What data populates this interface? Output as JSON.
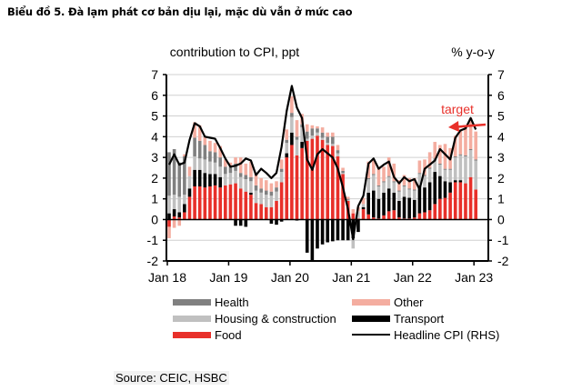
{
  "title": "Biểu đồ 5. Đà lạm phát cơ bản dịu lại, mặc dù vẫn ở mức cao",
  "source": "Source: CEIC, HSBC",
  "chart_data": {
    "type": "bar",
    "stacked": true,
    "title": "Biểu đồ 5. Đà lạm phát cơ bản dịu lại, mặc dù vẫn ở mức cao",
    "ylabel_left": "contribution  to CPI, ppt",
    "ylabel_right": "% y-o-y",
    "ylim": [
      -2,
      7
    ],
    "y2lim": [
      -2,
      7
    ],
    "yticks": [
      7,
      6,
      5,
      4,
      3,
      2,
      1,
      0,
      -1,
      -2
    ],
    "grid": true,
    "xtick_labels": [
      "Jan 18",
      "Jan 19",
      "Jan 20",
      "Jan 21",
      "Jan 22",
      "Jan 23"
    ],
    "xtick_indices": [
      0,
      12,
      24,
      36,
      48,
      60
    ],
    "annotation": {
      "text": "target",
      "value": 4.5,
      "color": "#e8302a"
    },
    "legend": [
      {
        "name": "Health",
        "color": "#808080",
        "kind": "bar"
      },
      {
        "name": "Other",
        "color": "#f4ada0",
        "kind": "bar"
      },
      {
        "name": "Housing & construction",
        "color": "#c0c0c0",
        "kind": "bar"
      },
      {
        "name": "Transport",
        "color": "#000000",
        "kind": "bar"
      },
      {
        "name": "Food",
        "color": "#e8302a",
        "kind": "bar"
      },
      {
        "name": "Headline CPI (RHS)",
        "color": "#000000",
        "kind": "line"
      }
    ],
    "legend_position": "bottom",
    "series": [
      {
        "name": "Food",
        "color": "#e8302a",
        "values": [
          -0.35,
          0.15,
          0.1,
          0.35,
          1.1,
          1.6,
          1.6,
          1.55,
          1.6,
          1.65,
          1.55,
          1.65,
          1.7,
          1.75,
          1.5,
          1.35,
          1.2,
          0.8,
          0.75,
          0.6,
          0.6,
          0.9,
          1.8,
          3.0,
          3.6,
          3.1,
          3.45,
          3.8,
          3.9,
          4.05,
          3.85,
          3.6,
          3.55,
          3.05,
          2.2,
          0.9,
          0.3,
          0.05,
          0.5,
          0.25,
          0.1,
          0.05,
          0.2,
          0.4,
          0.45,
          0.1,
          0.05,
          0.05,
          0.1,
          0.3,
          0.35,
          0.45,
          0.75,
          1.0,
          1.05,
          1.3,
          1.8,
          1.8,
          1.75,
          2.05,
          1.45
        ]
      },
      {
        "name": "Transport",
        "color": "#000000",
        "values": [
          0.3,
          0.35,
          0.25,
          0.4,
          0.4,
          0.8,
          0.8,
          0.7,
          0.6,
          0.55,
          0.5,
          0.0,
          0.0,
          -0.3,
          -0.3,
          -0.35,
          0.1,
          0.0,
          0.0,
          0.0,
          -0.2,
          -0.25,
          -0.1,
          0.2,
          0.6,
          -0.05,
          0.3,
          -1.6,
          -2.0,
          -1.4,
          -1.2,
          -1.1,
          -1.05,
          -1.0,
          -1.0,
          -1.0,
          -0.9,
          -0.6,
          0.1,
          1.05,
          1.3,
          0.95,
          1.1,
          1.1,
          0.85,
          0.8,
          1.05,
          1.0,
          0.85,
          1.35,
          1.2,
          1.35,
          1.55,
          1.1,
          0.8,
          0.5,
          0.1,
          0.1,
          0.0,
          0.0,
          0.0
        ]
      },
      {
        "name": "Housing & construction",
        "color": "#c0c0c0",
        "values": [
          0.85,
          0.7,
          0.75,
          0.45,
          0.6,
          0.65,
          0.55,
          0.65,
          0.6,
          0.55,
          0.5,
          0.55,
          0.55,
          0.6,
          0.55,
          0.6,
          0.55,
          0.6,
          0.55,
          0.6,
          0.55,
          0.45,
          0.5,
          0.5,
          0.75,
          0.75,
          0.7,
          0.1,
          0.15,
          0.15,
          0.1,
          0.1,
          0.1,
          0.15,
          0.05,
          0.05,
          -0.5,
          0.35,
          0.15,
          0.65,
          0.75,
          0.6,
          0.5,
          0.55,
          0.5,
          0.45,
          0.5,
          0.4,
          0.45,
          0.55,
          0.55,
          0.65,
          0.6,
          0.55,
          0.55,
          0.6,
          1.1,
          1.2,
          1.3,
          1.3,
          1.4
        ]
      },
      {
        "name": "Health",
        "color": "#808080",
        "values": [
          2.1,
          2.2,
          1.65,
          1.85,
          0.0,
          0.9,
          0.85,
          0.7,
          0.5,
          0.5,
          0.45,
          0.35,
          0.3,
          0.35,
          0.2,
          0.2,
          0.2,
          0.25,
          0.2,
          0.2,
          0.2,
          0.2,
          0.15,
          0.15,
          0.2,
          0.15,
          0.15,
          0.35,
          0.35,
          0.2,
          0.25,
          0.3,
          0.35,
          0.15,
          0.1,
          0.05,
          0.0,
          0.0,
          0.0,
          0.05,
          0.05,
          0.05,
          0.05,
          0.05,
          0.05,
          0.05,
          0.05,
          0.05,
          0.05,
          0.05,
          0.05,
          0.05,
          0.05,
          0.05,
          0.05,
          0.05,
          0.05,
          0.05,
          0.05,
          0.05,
          0.05
        ]
      },
      {
        "name": "Other",
        "color": "#f4ada0",
        "values": [
          -0.55,
          -0.4,
          -0.3,
          0.1,
          0.45,
          0.75,
          0.75,
          0.4,
          0.5,
          0.45,
          0.55,
          0.35,
          0.2,
          0.3,
          0.75,
          0.55,
          0.75,
          0.6,
          0.5,
          0.5,
          0.4,
          0.3,
          0.45,
          0.5,
          0.8,
          0.8,
          0.5,
          0.35,
          0.15,
          0.1,
          0.25,
          0.2,
          0.2,
          0.25,
          0.15,
          0.1,
          0.2,
          0.2,
          0.3,
          0.8,
          0.7,
          0.9,
          0.7,
          0.9,
          0.85,
          0.5,
          0.5,
          0.5,
          0.55,
          0.6,
          0.75,
          0.75,
          0.8,
          0.9,
          1.2,
          1.0,
          1.0,
          1.2,
          1.35,
          1.5,
          1.35
        ]
      },
      {
        "name": "Headline CPI (RHS)",
        "color": "#000000",
        "kind": "line",
        "axis": "right",
        "values": [
          2.65,
          3.15,
          2.65,
          2.75,
          3.85,
          4.65,
          4.5,
          4.0,
          3.95,
          3.9,
          3.45,
          2.95,
          2.55,
          2.6,
          2.7,
          2.95,
          2.85,
          2.15,
          2.45,
          2.25,
          2.0,
          2.25,
          3.5,
          5.25,
          6.45,
          5.4,
          4.9,
          2.9,
          2.4,
          3.15,
          3.4,
          3.2,
          3.0,
          2.45,
          1.55,
          0.5,
          -0.95,
          0.65,
          1.15,
          2.7,
          2.95,
          2.45,
          2.65,
          2.8,
          2.05,
          1.75,
          2.05,
          1.85,
          1.95,
          1.45,
          2.45,
          2.65,
          2.85,
          3.4,
          3.15,
          2.9,
          3.95,
          4.3,
          4.4,
          4.9,
          4.35
        ]
      }
    ]
  },
  "legend_display": [
    {
      "label": "Health",
      "color": "#808080",
      "kind": "bar"
    },
    {
      "label": "Other",
      "color": "#f4ada0",
      "kind": "bar"
    },
    {
      "label": "Housing & construction",
      "color": "#c0c0c0",
      "kind": "bar"
    },
    {
      "label": "Transport",
      "color": "#000000",
      "kind": "bar"
    },
    {
      "label": "Food",
      "color": "#e8302a",
      "kind": "bar"
    },
    {
      "label": "Headline CPI (RHS)",
      "color": "#000000",
      "kind": "line"
    }
  ]
}
